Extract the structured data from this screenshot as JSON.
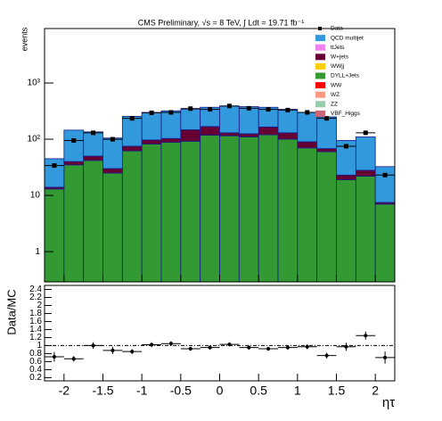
{
  "chart_data": {
    "type": "stacked_histogram",
    "title": "CMS Preliminary, √s = 8 TeV, ∫ Ldt = 19.71 fb⁻¹",
    "ylabel": "events",
    "xlabel": "ητ",
    "log_y": true,
    "bins": [
      -2.25,
      -2,
      -1.75,
      -1.5,
      -1.25,
      -1,
      -0.75,
      -0.5,
      -0.25,
      0,
      0.25,
      0.5,
      0.75,
      1,
      1.25,
      1.5,
      1.75,
      2,
      2.25
    ],
    "xlim": [
      -2.25,
      2.25
    ],
    "xticks": [
      -2,
      -1.5,
      -1,
      -0.5,
      0,
      0.5,
      1,
      1.5,
      2
    ],
    "ylim": [
      0.29,
      9300
    ],
    "yticks": [
      1,
      10,
      {
        "value": 100,
        "label": "10²"
      },
      {
        "value": 1000,
        "label": "10³"
      }
    ],
    "data": {
      "name": "Data",
      "color": "#000000",
      "values": [
        34,
        95,
        130,
        100,
        235,
        295,
        300,
        350,
        340,
        390,
        355,
        340,
        330,
        300,
        235,
        75,
        130,
        23
      ]
    },
    "series": [
      {
        "name": "QCD multijet",
        "color": "#3399dd",
        "values": [
          31,
          105,
          85,
          75,
          180,
          203,
          217,
          193,
          202,
          260,
          255,
          205,
          210,
          210,
          182,
          72,
          82,
          25
        ]
      },
      {
        "name": "ttJets",
        "color": "#f080f0"
      },
      {
        "name": "W+jets",
        "color": "#660033",
        "values": [
          1,
          5,
          8,
          5,
          13,
          15,
          15,
          55,
          50,
          15,
          15,
          45,
          30,
          20,
          8,
          4,
          6,
          0.5
        ]
      },
      {
        "name": "WWjj",
        "color": "#ffcc00"
      },
      {
        "name": "DYLL+Jets",
        "color": "#339933",
        "values": [
          13,
          35,
          42,
          25,
          62,
          82,
          88,
          92,
          118,
          115,
          110,
          120,
          100,
          70,
          60,
          19,
          22,
          7
        ]
      },
      {
        "name": "WW",
        "color": "#ff0000"
      },
      {
        "name": "WZ",
        "color": "#ff9980"
      },
      {
        "name": "ZZ",
        "color": "#99ccaa"
      },
      {
        "name": "VBF_Higgs",
        "color": "#cc6677"
      }
    ],
    "legend": "upper right",
    "ratio": {
      "ylabel": "Data/MC",
      "ylim": [
        0.12,
        2.5
      ],
      "yticks": [
        0.2,
        0.4,
        0.6,
        0.8,
        1,
        1.2,
        1.4,
        1.6,
        1.8,
        2,
        2.2,
        2.4
      ],
      "reference": 1,
      "values": [
        0.72,
        0.67,
        1.0,
        0.88,
        0.85,
        1.02,
        1.05,
        0.92,
        0.95,
        1.03,
        0.95,
        0.92,
        0.95,
        0.97,
        0.75,
        0.97,
        1.25,
        0.7
      ],
      "errors": [
        0.12,
        0.07,
        0.08,
        0.09,
        0.06,
        0.06,
        0.06,
        0.05,
        0.05,
        0.05,
        0.05,
        0.05,
        0.05,
        0.06,
        0.07,
        0.1,
        0.1,
        0.15
      ]
    }
  }
}
